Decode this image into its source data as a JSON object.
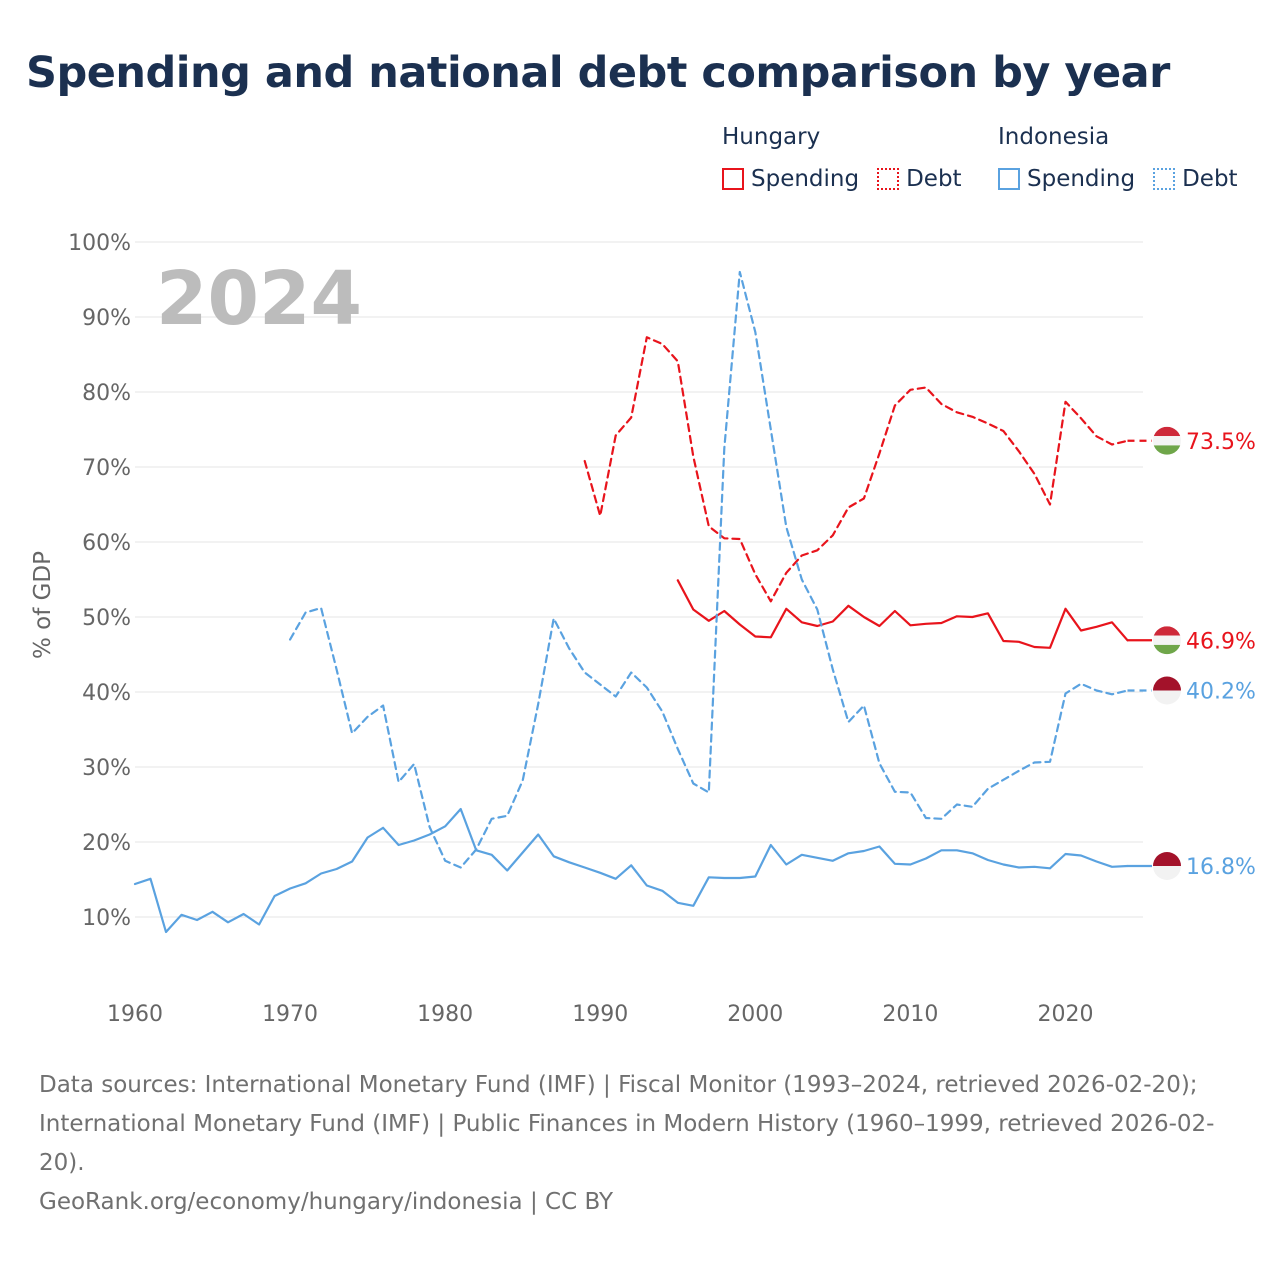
{
  "title": "Spending and national debt comparison by year",
  "legend": [
    {
      "country": "Hungary",
      "color": "#e8141c",
      "items": [
        {
          "label": "Spending",
          "style": "solid"
        },
        {
          "label": "Debt",
          "style": "dotted"
        }
      ]
    },
    {
      "country": "Indonesia",
      "color": "#5aa2e0",
      "items": [
        {
          "label": "Spending",
          "style": "solid"
        },
        {
          "label": "Debt",
          "style": "dotted"
        }
      ]
    }
  ],
  "footer": {
    "sources": "Data sources: International Monetary Fund (IMF) | Fiscal Monitor (1993–2024, retrieved 2026-02-20); International Monetary Fund (IMF) | Public Finances in Modern History (1960–1999, retrieved 2026-02-20).",
    "credit": "GeoRank.org/economy/hungary/indonesia | CC BY"
  },
  "chart_data": {
    "type": "line",
    "title": "Spending and national debt comparison by year",
    "year_watermark": "2024",
    "xlabel": "",
    "ylabel": "% of GDP",
    "xlim": [
      1960,
      2025
    ],
    "ylim": [
      0,
      100
    ],
    "xticks": [
      1960,
      1970,
      1980,
      1990,
      2000,
      2010,
      2020
    ],
    "yticks": [
      10,
      20,
      30,
      40,
      50,
      60,
      70,
      80,
      90,
      100
    ],
    "ytick_labels": [
      "10%",
      "20%",
      "30%",
      "40%",
      "50%",
      "60%",
      "70%",
      "80%",
      "90%",
      "100%"
    ],
    "grid": "horizontal",
    "series": [
      {
        "name": "Hungary Debt",
        "country": "Hungary",
        "metric": "Debt",
        "color": "#e8141c",
        "dash": "dashed",
        "end_label": "73.5%",
        "flag": "hungary",
        "x": [
          1989,
          1990,
          1991,
          1992,
          1993,
          1994,
          1995,
          1996,
          1997,
          1998,
          1999,
          2000,
          2001,
          2002,
          2003,
          2004,
          2005,
          2006,
          2007,
          2008,
          2009,
          2010,
          2011,
          2012,
          2013,
          2014,
          2015,
          2016,
          2017,
          2018,
          2019,
          2020,
          2021,
          2022,
          2023,
          2024
        ],
        "y": [
          70.8,
          63.5,
          74.2,
          76.6,
          87.3,
          86.4,
          84.1,
          71.4,
          62.1,
          60.5,
          60.4,
          55.7,
          52.1,
          55.9,
          58.2,
          58.9,
          60.9,
          64.6,
          65.8,
          71.8,
          78.2,
          80.3,
          80.6,
          78.4,
          77.3,
          76.7,
          75.8,
          74.8,
          72.1,
          69.1,
          65.0,
          78.7,
          76.5,
          74.1,
          73.0,
          73.5
        ]
      },
      {
        "name": "Hungary Spending",
        "country": "Hungary",
        "metric": "Spending",
        "color": "#e8141c",
        "dash": "solid",
        "end_label": "46.9%",
        "flag": "hungary",
        "x": [
          1995,
          1996,
          1997,
          1998,
          1999,
          2000,
          2001,
          2002,
          2003,
          2004,
          2005,
          2006,
          2007,
          2008,
          2009,
          2010,
          2011,
          2012,
          2013,
          2014,
          2015,
          2016,
          2017,
          2018,
          2019,
          2020,
          2021,
          2022,
          2023,
          2024
        ],
        "y": [
          54.9,
          51.0,
          49.5,
          50.8,
          49.0,
          47.4,
          47.3,
          51.1,
          49.3,
          48.8,
          49.4,
          51.5,
          50.0,
          48.8,
          50.8,
          48.9,
          49.1,
          49.2,
          50.1,
          50.0,
          50.5,
          46.8,
          46.7,
          46.0,
          45.9,
          51.1,
          48.2,
          48.7,
          49.3,
          46.9
        ]
      },
      {
        "name": "Indonesia Debt",
        "country": "Indonesia",
        "metric": "Debt",
        "color": "#5aa2e0",
        "dash": "dashed",
        "end_label": "40.2%",
        "flag": "indonesia",
        "x": [
          1970,
          1971,
          1972,
          1973,
          1974,
          1975,
          1976,
          1977,
          1978,
          1979,
          1980,
          1981,
          1982,
          1983,
          1984,
          1985,
          1986,
          1987,
          1988,
          1989,
          1990,
          1991,
          1992,
          1993,
          1994,
          1995,
          1996,
          1997,
          1998,
          1999,
          2000,
          2001,
          2002,
          2003,
          2004,
          2005,
          2006,
          2007,
          2008,
          2009,
          2010,
          2011,
          2012,
          2013,
          2014,
          2015,
          2016,
          2017,
          2018,
          2019,
          2020,
          2021,
          2022,
          2023,
          2024
        ],
        "y": [
          47.0,
          50.6,
          51.2,
          43.0,
          34.5,
          36.7,
          38.2,
          28.0,
          30.4,
          22.0,
          17.5,
          16.6,
          19.0,
          23.1,
          23.5,
          28.2,
          38.4,
          49.8,
          45.8,
          42.6,
          41.0,
          39.4,
          42.6,
          40.6,
          37.4,
          32.4,
          27.8,
          26.6,
          72.5,
          96.0,
          88.0,
          75.0,
          62.0,
          55.0,
          51.0,
          43.0,
          36.0,
          38.2,
          30.5,
          26.7,
          26.6,
          23.2,
          23.1,
          25.0,
          24.7,
          27.1,
          28.3,
          29.5,
          30.6,
          30.7,
          39.8,
          41.1,
          40.2,
          39.7,
          40.2
        ]
      },
      {
        "name": "Indonesia Spending",
        "country": "Indonesia",
        "metric": "Spending",
        "color": "#5aa2e0",
        "dash": "solid",
        "end_label": "16.8%",
        "flag": "indonesia",
        "x": [
          1960,
          1961,
          1962,
          1963,
          1964,
          1965,
          1966,
          1967,
          1968,
          1969,
          1970,
          1971,
          1972,
          1973,
          1974,
          1975,
          1976,
          1977,
          1978,
          1979,
          1980,
          1981,
          1982,
          1983,
          1984,
          1985,
          1986,
          1987,
          1988,
          1989,
          1990,
          1991,
          1992,
          1993,
          1994,
          1995,
          1996,
          1997,
          1998,
          1999,
          2000,
          2001,
          2002,
          2003,
          2004,
          2005,
          2006,
          2007,
          2008,
          2009,
          2010,
          2011,
          2012,
          2013,
          2014,
          2015,
          2016,
          2017,
          2018,
          2019,
          2020,
          2021,
          2022,
          2023,
          2024
        ],
        "y": [
          14.4,
          15.1,
          8.0,
          10.3,
          9.6,
          10.7,
          9.3,
          10.4,
          9.0,
          12.8,
          13.8,
          14.5,
          15.8,
          16.4,
          17.4,
          20.6,
          21.9,
          19.6,
          20.2,
          21.0,
          22.1,
          24.4,
          18.9,
          18.3,
          16.2,
          18.6,
          21.0,
          18.1,
          17.3,
          16.6,
          15.9,
          15.1,
          16.9,
          14.2,
          13.5,
          11.9,
          11.5,
          15.3,
          15.2,
          15.2,
          15.4,
          19.6,
          17.0,
          18.3,
          17.9,
          17.5,
          18.5,
          18.8,
          19.4,
          17.1,
          17.0,
          17.8,
          18.9,
          18.9,
          18.5,
          17.6,
          17.0,
          16.6,
          16.7,
          16.5,
          18.4,
          18.2,
          17.4,
          16.7,
          16.8
        ]
      }
    ]
  }
}
